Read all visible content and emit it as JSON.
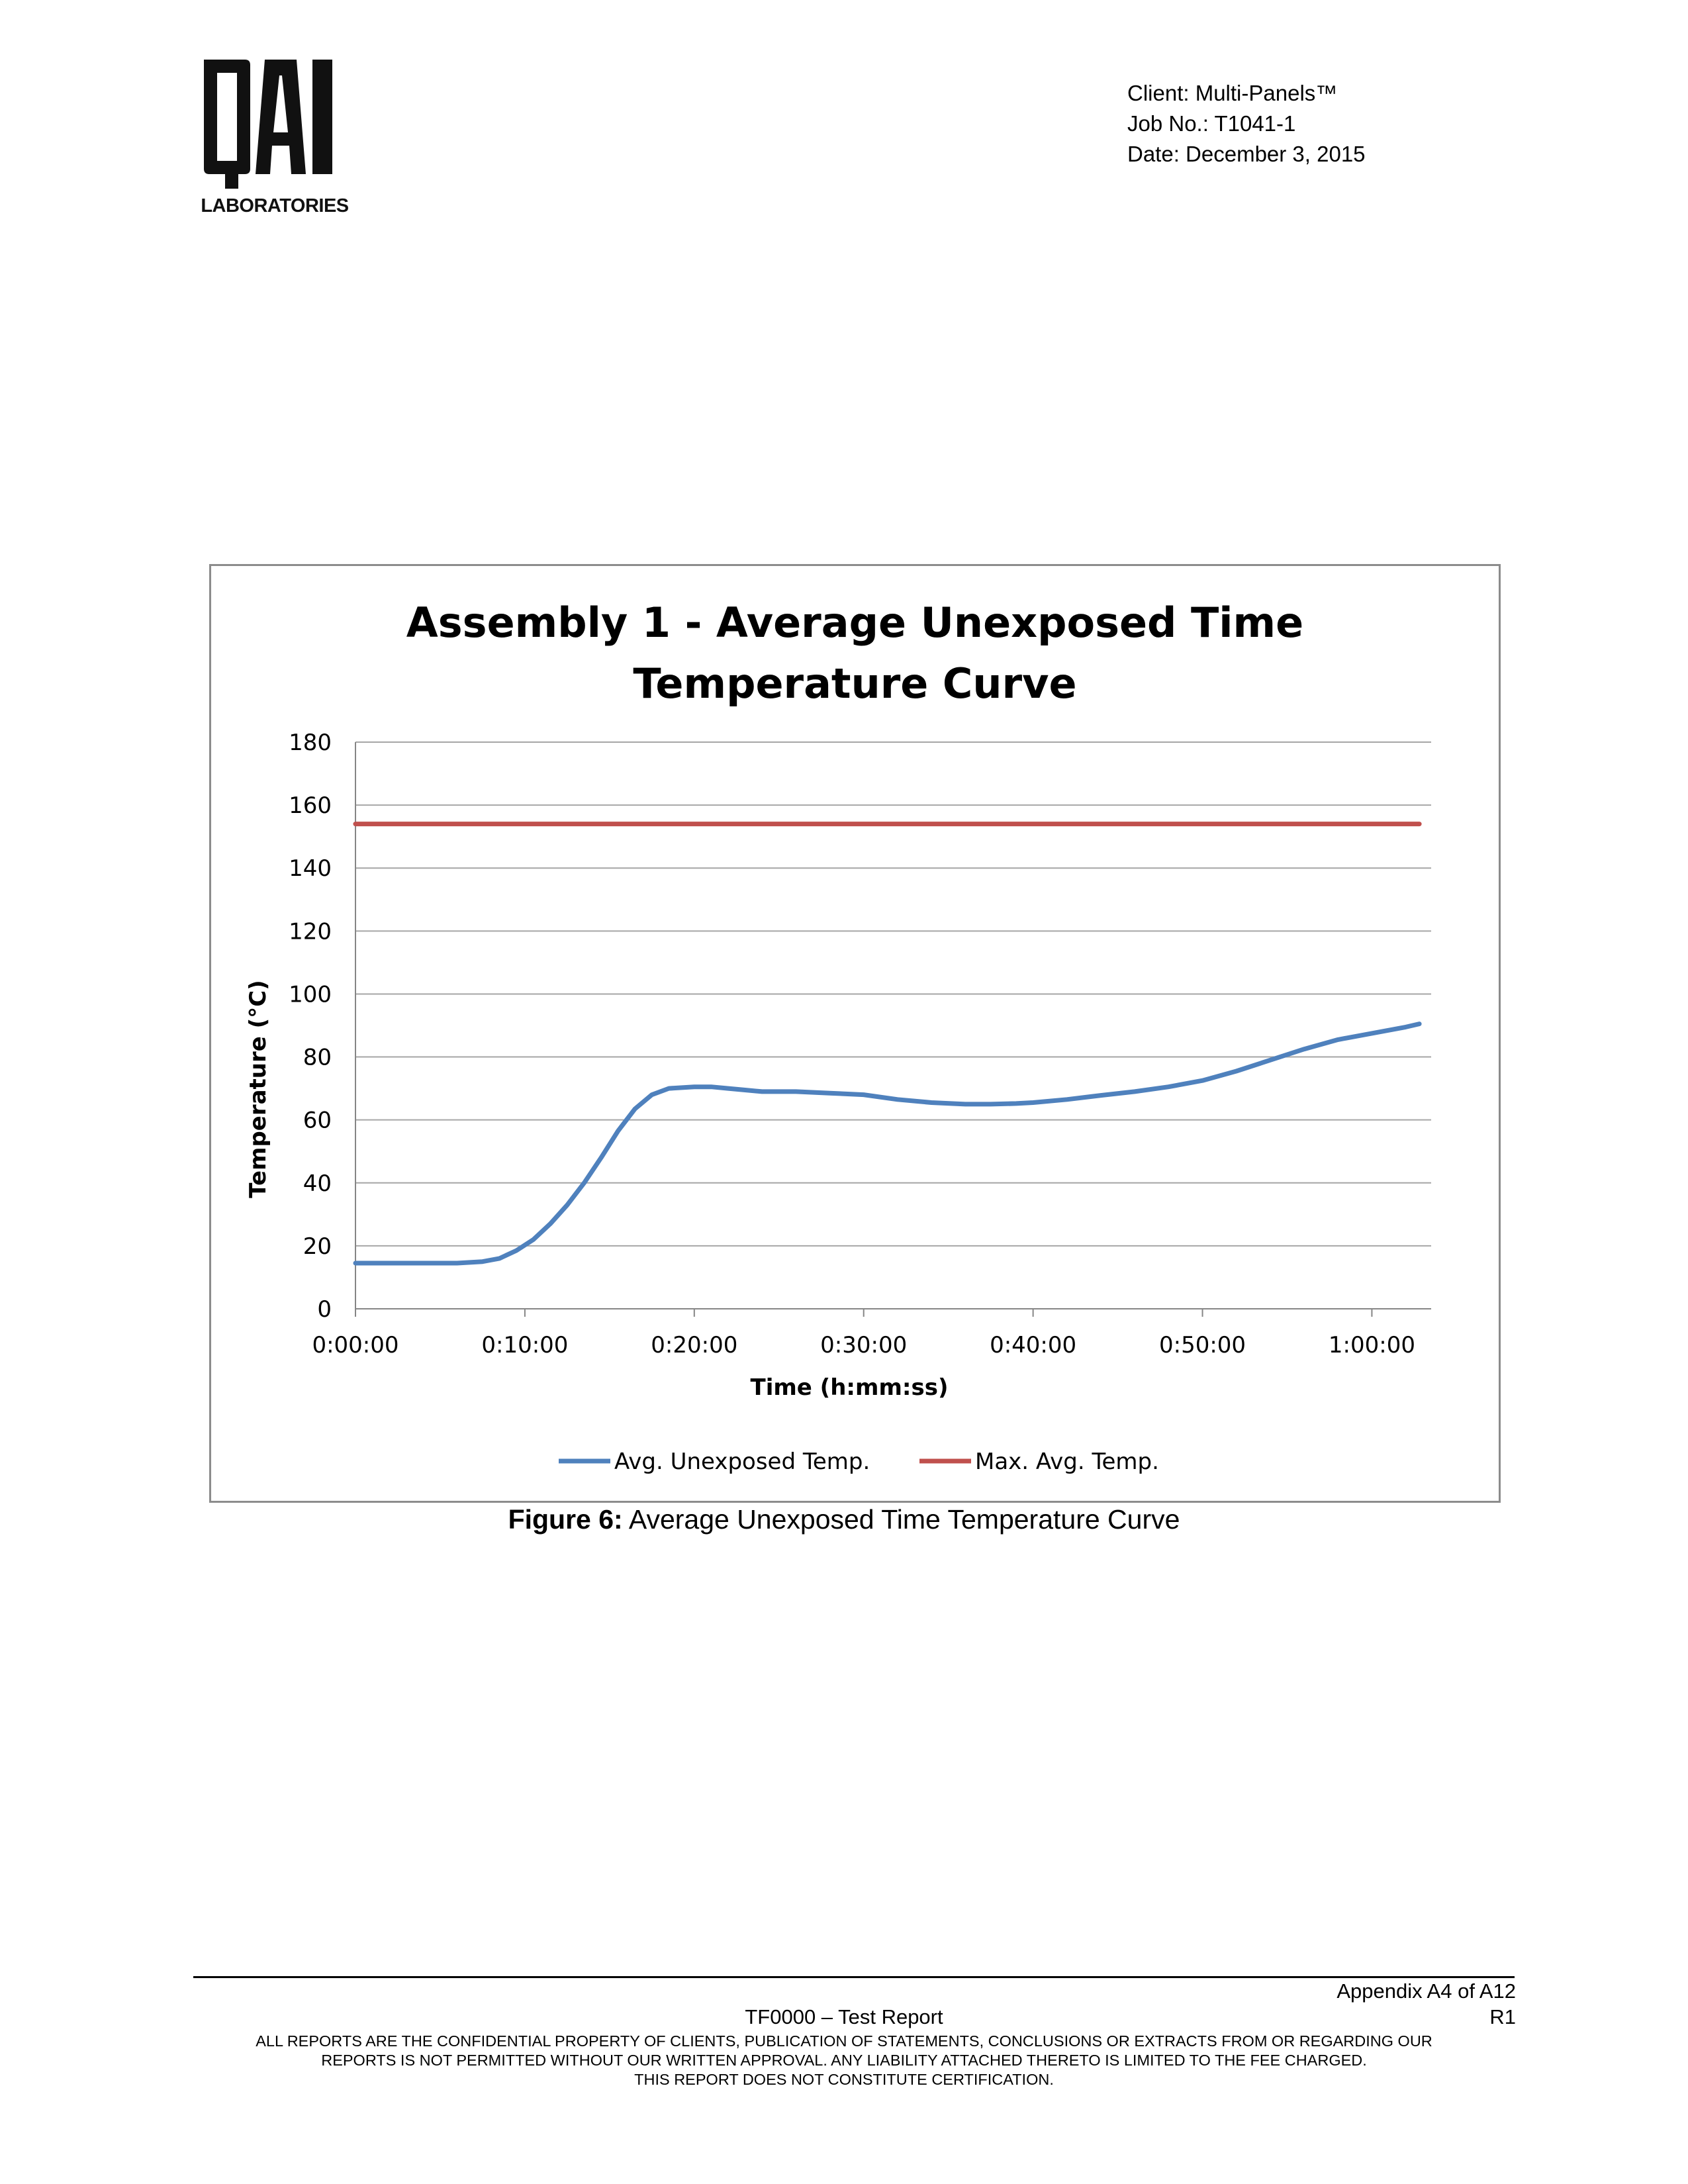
{
  "header": {
    "logo": {
      "icon": "qai-laboratories-logo",
      "mark": "QAI",
      "subtitle": "LABORATORIES"
    },
    "client": "Client: Multi-Panels™",
    "job_no": "Job No.: T1041-1",
    "date": "Date: December 3, 2015"
  },
  "chart_data": {
    "type": "line",
    "title_line1": "Assembly 1 - Average Unexposed Time",
    "title_line2": "Temperature Curve",
    "xlabel": "Time (h:mm:ss)",
    "ylabel": "Temperature (°C)",
    "x_unit": "minutes",
    "xlim": [
      0,
      63.5
    ],
    "ylim": [
      0,
      180
    ],
    "yticks": [
      0,
      20,
      40,
      60,
      80,
      100,
      120,
      140,
      160,
      180
    ],
    "xticks": [
      {
        "value": 0,
        "label": "0:00:00"
      },
      {
        "value": 10,
        "label": "0:10:00"
      },
      {
        "value": 20,
        "label": "0:20:00"
      },
      {
        "value": 30,
        "label": "0:30:00"
      },
      {
        "value": 40,
        "label": "0:40:00"
      },
      {
        "value": 50,
        "label": "0:50:00"
      },
      {
        "value": 60,
        "label": "1:00:00"
      }
    ],
    "grid": "horizontal",
    "legend_position": "bottom",
    "series": [
      {
        "name": "Avg. Unexposed Temp.",
        "color": "#4f81bd",
        "points": [
          [
            0,
            14.5
          ],
          [
            2,
            14.5
          ],
          [
            4,
            14.5
          ],
          [
            6,
            14.5
          ],
          [
            7.5,
            15
          ],
          [
            8.5,
            16
          ],
          [
            9.5,
            18.5
          ],
          [
            10.5,
            22
          ],
          [
            11.5,
            27
          ],
          [
            12.5,
            33
          ],
          [
            13.5,
            40
          ],
          [
            14.5,
            48
          ],
          [
            15.5,
            56.5
          ],
          [
            16.5,
            63.5
          ],
          [
            17.5,
            68
          ],
          [
            18.5,
            70
          ],
          [
            20,
            70.5
          ],
          [
            21,
            70.5
          ],
          [
            22,
            70
          ],
          [
            23,
            69.5
          ],
          [
            24,
            69
          ],
          [
            26,
            69
          ],
          [
            28,
            68.5
          ],
          [
            30,
            68
          ],
          [
            32,
            66.5
          ],
          [
            34,
            65.5
          ],
          [
            36,
            65
          ],
          [
            37.5,
            65
          ],
          [
            39,
            65.2
          ],
          [
            40,
            65.5
          ],
          [
            42,
            66.5
          ],
          [
            44,
            67.8
          ],
          [
            46,
            69
          ],
          [
            48,
            70.5
          ],
          [
            50,
            72.5
          ],
          [
            52,
            75.5
          ],
          [
            54,
            79
          ],
          [
            56,
            82.5
          ],
          [
            58,
            85.5
          ],
          [
            60,
            87.5
          ],
          [
            62,
            89.5
          ],
          [
            62.8,
            90.5
          ]
        ]
      },
      {
        "name": "Max. Avg. Temp.",
        "color": "#c0504d",
        "points": [
          [
            0,
            154
          ],
          [
            62.8,
            154
          ]
        ]
      }
    ]
  },
  "caption": {
    "label": "Figure 6:",
    "text": " Average Unexposed Time Temperature Curve"
  },
  "footer": {
    "appendix": "Appendix A4 of A12",
    "report": "TF0000 – Test Report",
    "revision": "R1",
    "legal_line1": "ALL REPORTS ARE THE CONFIDENTIAL PROPERTY OF CLIENTS, PUBLICATION OF STATEMENTS, CONCLUSIONS OR EXTRACTS FROM OR REGARDING OUR",
    "legal_line2": "REPORTS IS NOT PERMITTED WITHOUT OUR WRITTEN APPROVAL. ANY LIABILITY ATTACHED THERETO IS LIMITED TO THE FEE CHARGED.",
    "legal_line3": "THIS REPORT DOES NOT CONSTITUTE CERTIFICATION."
  }
}
